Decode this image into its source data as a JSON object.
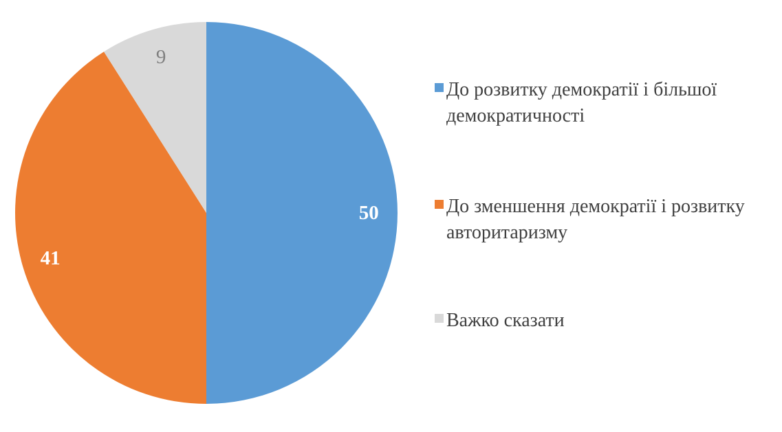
{
  "chart_data": {
    "type": "pie",
    "title": "",
    "labels": [
      "До розвитку демократії і більшої демократичності",
      "До зменшення демократії і розвитку авторитаризму",
      "Важко сказати"
    ],
    "values": [
      50,
      41,
      9
    ],
    "colors": [
      "#5b9bd5",
      "#ed7d31",
      "#d9d9d9"
    ],
    "data_labels": [
      "50",
      "41",
      "9"
    ],
    "data_label_colors": [
      "#ffffff",
      "#ffffff",
      "#7f7f7f"
    ],
    "data_label_weights": [
      "bold",
      "bold",
      "normal"
    ],
    "start_angle_deg": 0,
    "direction": "clockwise",
    "legend_position": "right",
    "background_color": "#ffffff",
    "legend_text_color": "#404040"
  }
}
